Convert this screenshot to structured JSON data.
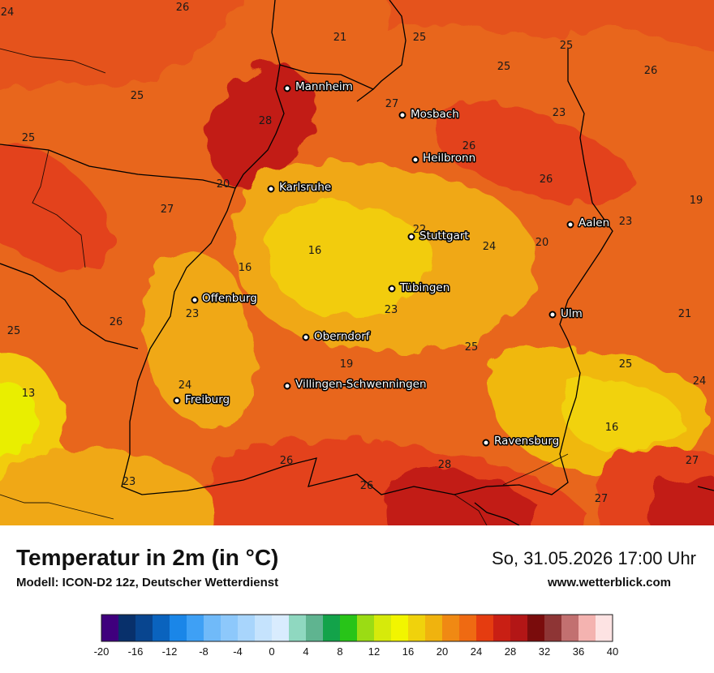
{
  "map": {
    "cities": [
      {
        "name": "Mannheim"
      },
      {
        "name": "Mosbach"
      },
      {
        "name": "Heilbronn"
      },
      {
        "name": "Karlsruhe"
      },
      {
        "name": "Stuttgart"
      },
      {
        "name": "Aalen"
      },
      {
        "name": "Tübingen"
      },
      {
        "name": "Offenburg"
      },
      {
        "name": "Ulm"
      },
      {
        "name": "Oberndorf"
      },
      {
        "name": "Villingen-Schwenningen"
      },
      {
        "name": "Freiburg"
      },
      {
        "name": "Ravensburg"
      }
    ],
    "temperatures": [
      "24",
      "26",
      "21",
      "25",
      "25",
      "26",
      "25",
      "27",
      "23",
      "28",
      "25",
      "26",
      "20",
      "26",
      "25",
      "19",
      "27",
      "22",
      "16",
      "16",
      "24",
      "20",
      "23",
      "23",
      "23",
      "21",
      "26",
      "25",
      "25",
      "19",
      "25",
      "24",
      "13",
      "24",
      "16",
      "26",
      "28",
      "27",
      "23",
      "26",
      "27"
    ]
  },
  "footer": {
    "title": "Temperatur in 2m (in °C)",
    "subtitle": "Modell: ICON-D2 12z, Deutscher Wetterdienst",
    "datetime": "So, 31.05.2026 17:00 Uhr",
    "website": "www.wetterblick.com"
  },
  "legend": {
    "ticks": [
      "-20",
      "-16",
      "-12",
      "-8",
      "-4",
      "0",
      "4",
      "8",
      "12",
      "16",
      "20",
      "24",
      "28",
      "32",
      "36",
      "40"
    ],
    "colors": [
      "#3f007d",
      "#08306b",
      "#08458f",
      "#0a63be",
      "#1a86e8",
      "#3ea0f5",
      "#70baf9",
      "#8dc8fb",
      "#a8d5fc",
      "#c5e3fd",
      "#d9ecfe",
      "#8fd8c0",
      "#5fb490",
      "#13a34a",
      "#28c418",
      "#9bdc14",
      "#d6ea0b",
      "#f2f500",
      "#f0d20c",
      "#f0b30e",
      "#f08913",
      "#ef6a12",
      "#e53c10",
      "#c91f14",
      "#b31616",
      "#7a0c0c",
      "#8e3535",
      "#c27070",
      "#f4b3b0",
      "#fde3e3"
    ],
    "accent": "#1a1a1a"
  }
}
